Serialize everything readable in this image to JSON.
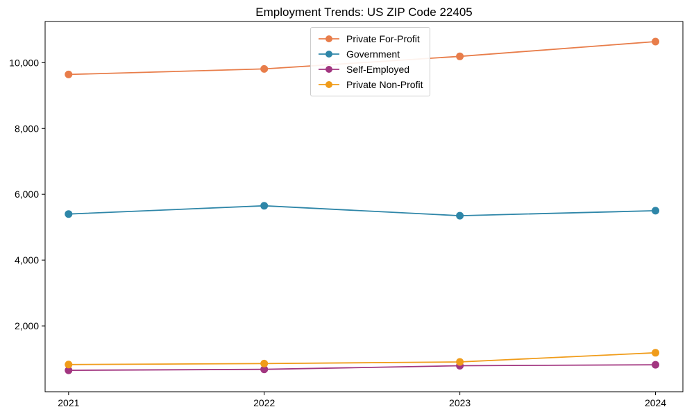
{
  "chart_data": {
    "type": "line",
    "title": "Employment Trends: US ZIP Code 22405",
    "xlabel": "",
    "ylabel": "",
    "x": [
      2021,
      2022,
      2023,
      2024
    ],
    "x_tick_labels": [
      "2021",
      "2022",
      "2023",
      "2024"
    ],
    "y_ticks": [
      2000,
      4000,
      6000,
      8000,
      10000
    ],
    "y_tick_labels": [
      "2,000",
      "4,000",
      "6,000",
      "8,000",
      "10,000"
    ],
    "xlim": [
      2020.88,
      2024.14
    ],
    "ylim": [
      0,
      11250
    ],
    "grid": false,
    "legend_position": "upper center",
    "marker": "circle",
    "series": [
      {
        "name": "Private For-Profit",
        "color": "#e87d4a",
        "values": [
          9640,
          9810,
          10190,
          10640
        ]
      },
      {
        "name": "Government",
        "color": "#2e86a8",
        "values": [
          5400,
          5650,
          5350,
          5500
        ]
      },
      {
        "name": "Self-Employed",
        "color": "#a23680",
        "values": [
          650,
          680,
          790,
          820
        ]
      },
      {
        "name": "Private Non-Profit",
        "color": "#f09c1a",
        "values": [
          825,
          855,
          905,
          1185
        ]
      }
    ]
  }
}
